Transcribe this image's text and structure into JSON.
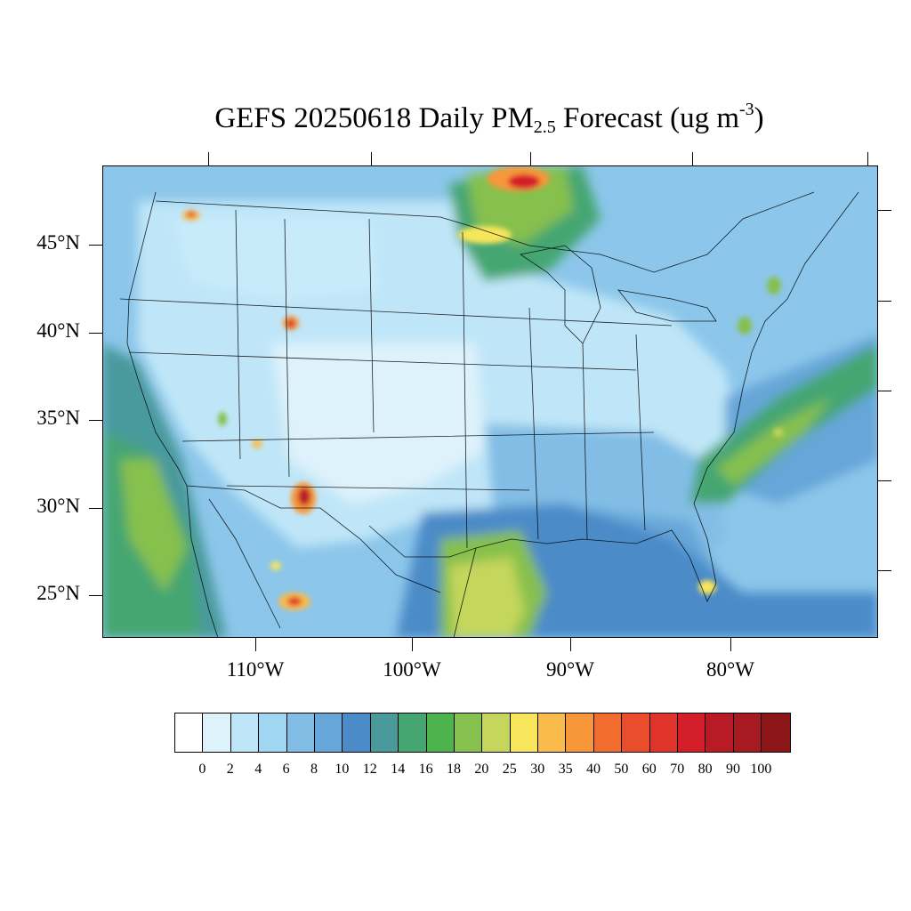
{
  "title": {
    "main": "GEFS 20250618 Daily PM",
    "sub": "2.5",
    "tail": " Forecast (ug m",
    "sup": "-3",
    "close": ")"
  },
  "map": {
    "lat_labels": [
      "45°N",
      "40°N",
      "35°N",
      "30°N",
      "25°N"
    ],
    "lon_labels": [
      "110°W",
      "100°W",
      "90°W",
      "80°W"
    ],
    "background_color": "#a4d8f2"
  },
  "colorbar": {
    "levels": [
      "0",
      "2",
      "4",
      "6",
      "8",
      "10",
      "12",
      "14",
      "16",
      "18",
      "20",
      "25",
      "30",
      "35",
      "40",
      "50",
      "60",
      "70",
      "80",
      "90",
      "100"
    ],
    "colors": [
      "#ffffff",
      "#def2fb",
      "#bfe6f8",
      "#a0d6f2",
      "#82bde5",
      "#66a6d8",
      "#4b8bc8",
      "#4a9a9c",
      "#45a672",
      "#4db34c",
      "#86c04e",
      "#c4d65c",
      "#f7e65c",
      "#f9bb4b",
      "#f7973a",
      "#f26c30",
      "#ea4d2c",
      "#e0342a",
      "#d41f2a",
      "#b81b25",
      "#a81a21",
      "#8c1519"
    ]
  }
}
